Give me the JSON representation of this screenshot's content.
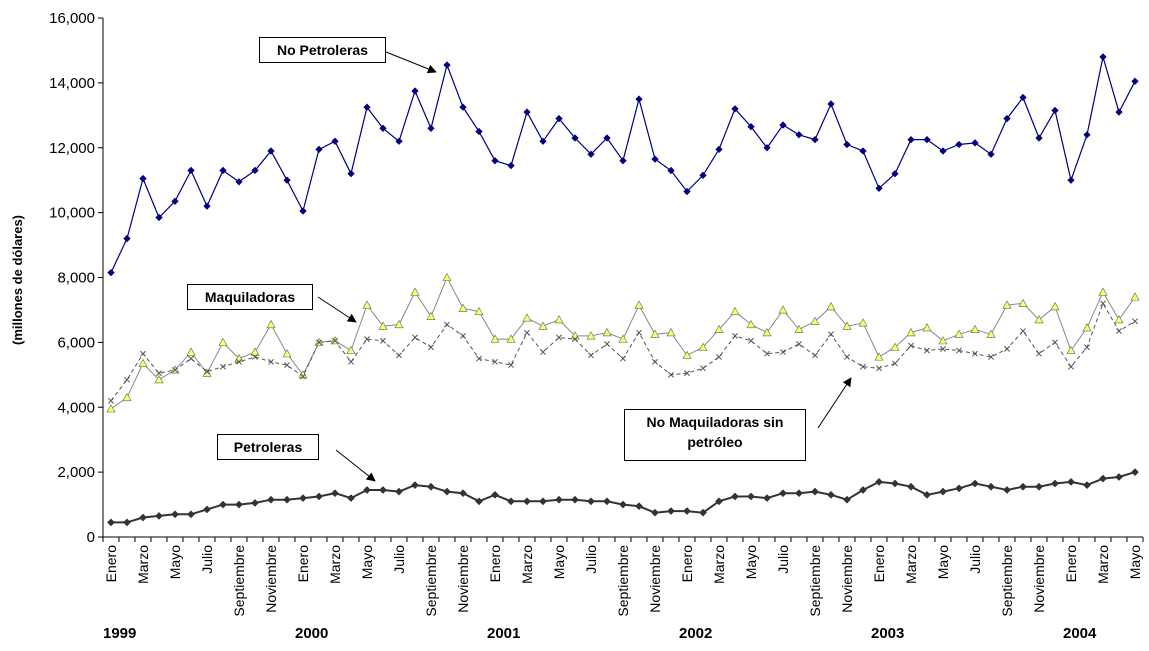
{
  "chart_data": {
    "type": "line",
    "title": "",
    "ylabel": "(millones de dólares)",
    "xlabel": "",
    "ylim": [
      0,
      16000
    ],
    "yticks": [
      "0",
      "2,000",
      "4,000",
      "6,000",
      "8,000",
      "10,000",
      "12,000",
      "14,000",
      "16,000"
    ],
    "ytick_values": [
      0,
      2000,
      4000,
      6000,
      8000,
      10000,
      12000,
      14000,
      16000
    ],
    "grid": false,
    "x_labels": [
      "Enero",
      "",
      "Marzo",
      "",
      "Mayo",
      "",
      "Julio",
      "",
      "Septiembre",
      "",
      "Noviembre",
      "",
      "Enero",
      "",
      "Marzo",
      "",
      "Mayo",
      "",
      "Julio",
      "",
      "Septiembre",
      "",
      "Noviembre",
      "",
      "Enero",
      "",
      "Marzo",
      "",
      "Mayo",
      "",
      "Julio",
      "",
      "Septiembre",
      "",
      "Noviembre",
      "",
      "Enero",
      "",
      "Marzo",
      "",
      "Mayo",
      "",
      "Julio",
      "",
      "Septiembre",
      "",
      "Noviembre",
      "",
      "Enero",
      "",
      "Marzo",
      "",
      "Mayo",
      "",
      "Julio",
      "",
      "Septiembre",
      "",
      "Noviembre",
      "",
      "Enero",
      "",
      "Marzo",
      "",
      "Mayo"
    ],
    "years": [
      {
        "label": "1999",
        "index": 0
      },
      {
        "label": "2000",
        "index": 12
      },
      {
        "label": "2001",
        "index": 24
      },
      {
        "label": "2002",
        "index": 36
      },
      {
        "label": "2003",
        "index": 48
      },
      {
        "label": "2004",
        "index": 60
      }
    ],
    "series": [
      {
        "name": "No Petroleras",
        "color": "#000080",
        "marker": "diamond",
        "dash": "",
        "values": [
          8150,
          9200,
          11050,
          9850,
          10350,
          11300,
          10200,
          11300,
          10950,
          11300,
          11900,
          11000,
          10050,
          11950,
          12200,
          11200,
          13250,
          12600,
          12200,
          13750,
          12600,
          14550,
          13250,
          12500,
          11600,
          11450,
          13100,
          12200,
          12900,
          12300,
          11800,
          12300,
          11600,
          13500,
          11650,
          11300,
          10650,
          11150,
          11950,
          13200,
          12650,
          12000,
          12700,
          12400,
          12250,
          13350,
          12100,
          11900,
          10750,
          11200,
          12250,
          12250,
          11900,
          12100,
          12150,
          11800,
          12900,
          13550,
          12300,
          13150,
          11000,
          12400,
          14800,
          13100,
          14050
        ]
      },
      {
        "name": "Maquiladoras",
        "color": "#888888",
        "marker": "triangle",
        "dash": "",
        "values": [
          3950,
          4300,
          5350,
          4850,
          5150,
          5700,
          5050,
          6000,
          5500,
          5700,
          6550,
          5650,
          5000,
          6000,
          6050,
          5750,
          7150,
          6500,
          6550,
          7550,
          6800,
          8000,
          7050,
          6950,
          6100,
          6100,
          6750,
          6500,
          6700,
          6200,
          6200,
          6300,
          6100,
          7150,
          6250,
          6300,
          5600,
          5850,
          6400,
          6950,
          6550,
          6300,
          7000,
          6400,
          6650,
          7100,
          6500,
          6600,
          5550,
          5850,
          6300,
          6450,
          6050,
          6250,
          6400,
          6250,
          7150,
          7200,
          6700,
          7100,
          5750,
          6450,
          7550,
          6700,
          7400
        ]
      },
      {
        "name": "No Maquiladoras sin petróleo",
        "color": "#555555",
        "marker": "x",
        "dash": "4,3",
        "values": [
          4200,
          4850,
          5650,
          5050,
          5150,
          5500,
          5100,
          5250,
          5400,
          5550,
          5400,
          5300,
          4950,
          6000,
          6050,
          5400,
          6100,
          6050,
          5600,
          6150,
          5850,
          6550,
          6200,
          5500,
          5400,
          5300,
          6300,
          5700,
          6150,
          6100,
          5600,
          5950,
          5500,
          6300,
          5400,
          5000,
          5050,
          5200,
          5550,
          6200,
          6050,
          5650,
          5700,
          5950,
          5600,
          6250,
          5550,
          5250,
          5200,
          5350,
          5900,
          5750,
          5800,
          5750,
          5650,
          5550,
          5800,
          6350,
          5650,
          6000,
          5250,
          5850,
          7200,
          6350,
          6650
        ]
      },
      {
        "name": "Petroleras",
        "color": "#333333",
        "marker": "diamond",
        "dash": "",
        "values": [
          450,
          450,
          600,
          650,
          700,
          700,
          850,
          1000,
          1000,
          1050,
          1150,
          1150,
          1200,
          1250,
          1350,
          1200,
          1450,
          1450,
          1400,
          1600,
          1550,
          1400,
          1350,
          1100,
          1300,
          1100,
          1100,
          1100,
          1150,
          1150,
          1100,
          1100,
          1000,
          950,
          750,
          800,
          800,
          750,
          1100,
          1250,
          1250,
          1200,
          1350,
          1350,
          1400,
          1300,
          1150,
          1450,
          1700,
          1650,
          1550,
          1300,
          1400,
          1500,
          1650,
          1550,
          1450,
          1550,
          1550,
          1650,
          1700,
          1600,
          1800,
          1850,
          2000
        ]
      }
    ],
    "annotations": [
      {
        "text": "No Petroleras",
        "series": 0
      },
      {
        "text": "Maquiladoras",
        "series": 1
      },
      {
        "text": "No Maquiladoras sin petróleo",
        "series": 2
      },
      {
        "text": "Petroleras",
        "series": 3
      }
    ]
  }
}
